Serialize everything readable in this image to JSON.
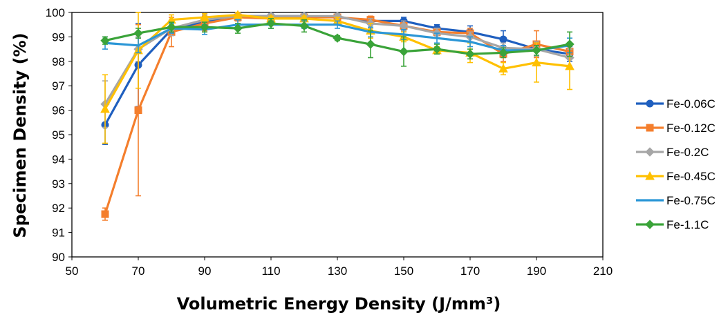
{
  "chart_data": {
    "type": "line",
    "xlabel": "Volumetric Energy Density (J/mm³)",
    "ylabel": "Specimen Density (%)",
    "xlim": [
      50,
      210
    ],
    "ylim": [
      90,
      100
    ],
    "xticks": [
      50,
      70,
      90,
      110,
      130,
      150,
      170,
      190,
      210
    ],
    "yticks": [
      90,
      91,
      92,
      93,
      94,
      95,
      96,
      97,
      98,
      99,
      100
    ],
    "grid": false,
    "legend_position": "right",
    "x": [
      60,
      70,
      80,
      90,
      100,
      110,
      120,
      130,
      140,
      150,
      160,
      170,
      180,
      190,
      200
    ],
    "series": [
      {
        "name": "Fe-0.06C",
        "color": "#1f5fbf",
        "marker": "circle",
        "values": [
          95.4,
          97.85,
          99.3,
          99.6,
          99.85,
          99.85,
          99.85,
          99.8,
          99.65,
          99.65,
          99.35,
          99.2,
          98.9,
          98.5,
          98.3
        ],
        "errors": [
          0.8,
          1.7,
          0.2,
          0.15,
          0.1,
          0.1,
          0.1,
          0.1,
          0.15,
          0.15,
          0.15,
          0.25,
          0.35,
          0.3,
          0.3
        ]
      },
      {
        "name": "Fe-0.12C",
        "color": "#f47e2c",
        "marker": "square",
        "values": [
          91.75,
          96.0,
          99.2,
          99.55,
          99.8,
          99.75,
          99.8,
          99.8,
          99.7,
          99.45,
          99.2,
          99.15,
          98.3,
          98.7,
          98.4
        ],
        "errors": [
          0.25,
          3.5,
          0.6,
          0.3,
          0.15,
          0.1,
          0.1,
          0.1,
          0.15,
          0.2,
          0.15,
          0.2,
          0.3,
          0.55,
          0.3
        ]
      },
      {
        "name": "Fe-0.2C",
        "color": "#a6a6a6",
        "marker": "diamond",
        "values": [
          96.25,
          98.5,
          99.35,
          99.7,
          99.85,
          99.85,
          99.85,
          99.85,
          99.55,
          99.45,
          99.15,
          99.0,
          98.55,
          98.5,
          98.15
        ],
        "errors": [
          0.95,
          0.5,
          0.3,
          0.2,
          0.1,
          0.1,
          0.1,
          0.1,
          0.2,
          0.2,
          0.2,
          0.2,
          0.2,
          0.3,
          0.35
        ]
      },
      {
        "name": "Fe-0.45C",
        "color": "#ffc000",
        "marker": "triangle",
        "values": [
          96.05,
          98.45,
          99.7,
          99.8,
          99.9,
          99.75,
          99.75,
          99.65,
          99.25,
          99.0,
          98.45,
          98.35,
          97.7,
          97.95,
          97.8
        ],
        "errors": [
          1.4,
          1.55,
          0.2,
          0.15,
          0.1,
          0.1,
          0.1,
          0.15,
          0.3,
          0.2,
          0.15,
          0.4,
          0.25,
          0.8,
          0.95
        ]
      },
      {
        "name": "Fe-0.75C",
        "color": "#2a96d6",
        "marker": "none",
        "values": [
          98.75,
          98.65,
          99.35,
          99.3,
          99.5,
          99.5,
          99.5,
          99.5,
          99.2,
          99.1,
          98.95,
          98.8,
          98.45,
          98.45,
          98.65
        ],
        "errors": [
          0.25,
          0.3,
          0.2,
          0.2,
          0.2,
          0.15,
          0.15,
          0.15,
          0.2,
          0.2,
          0.2,
          0.2,
          0.2,
          0.2,
          0.3
        ]
      },
      {
        "name": "Fe-1.1C",
        "color": "#3aa339",
        "marker": "diamond",
        "values": [
          98.85,
          99.15,
          99.4,
          99.4,
          99.35,
          99.55,
          99.45,
          98.95,
          98.7,
          98.4,
          98.5,
          98.3,
          98.35,
          98.45,
          98.7
        ],
        "errors": [
          0.15,
          0.2,
          0.2,
          0.2,
          0.2,
          0.2,
          0.25,
          0.1,
          0.55,
          0.6,
          0.2,
          0.2,
          0.2,
          0.2,
          0.5
        ]
      }
    ]
  }
}
